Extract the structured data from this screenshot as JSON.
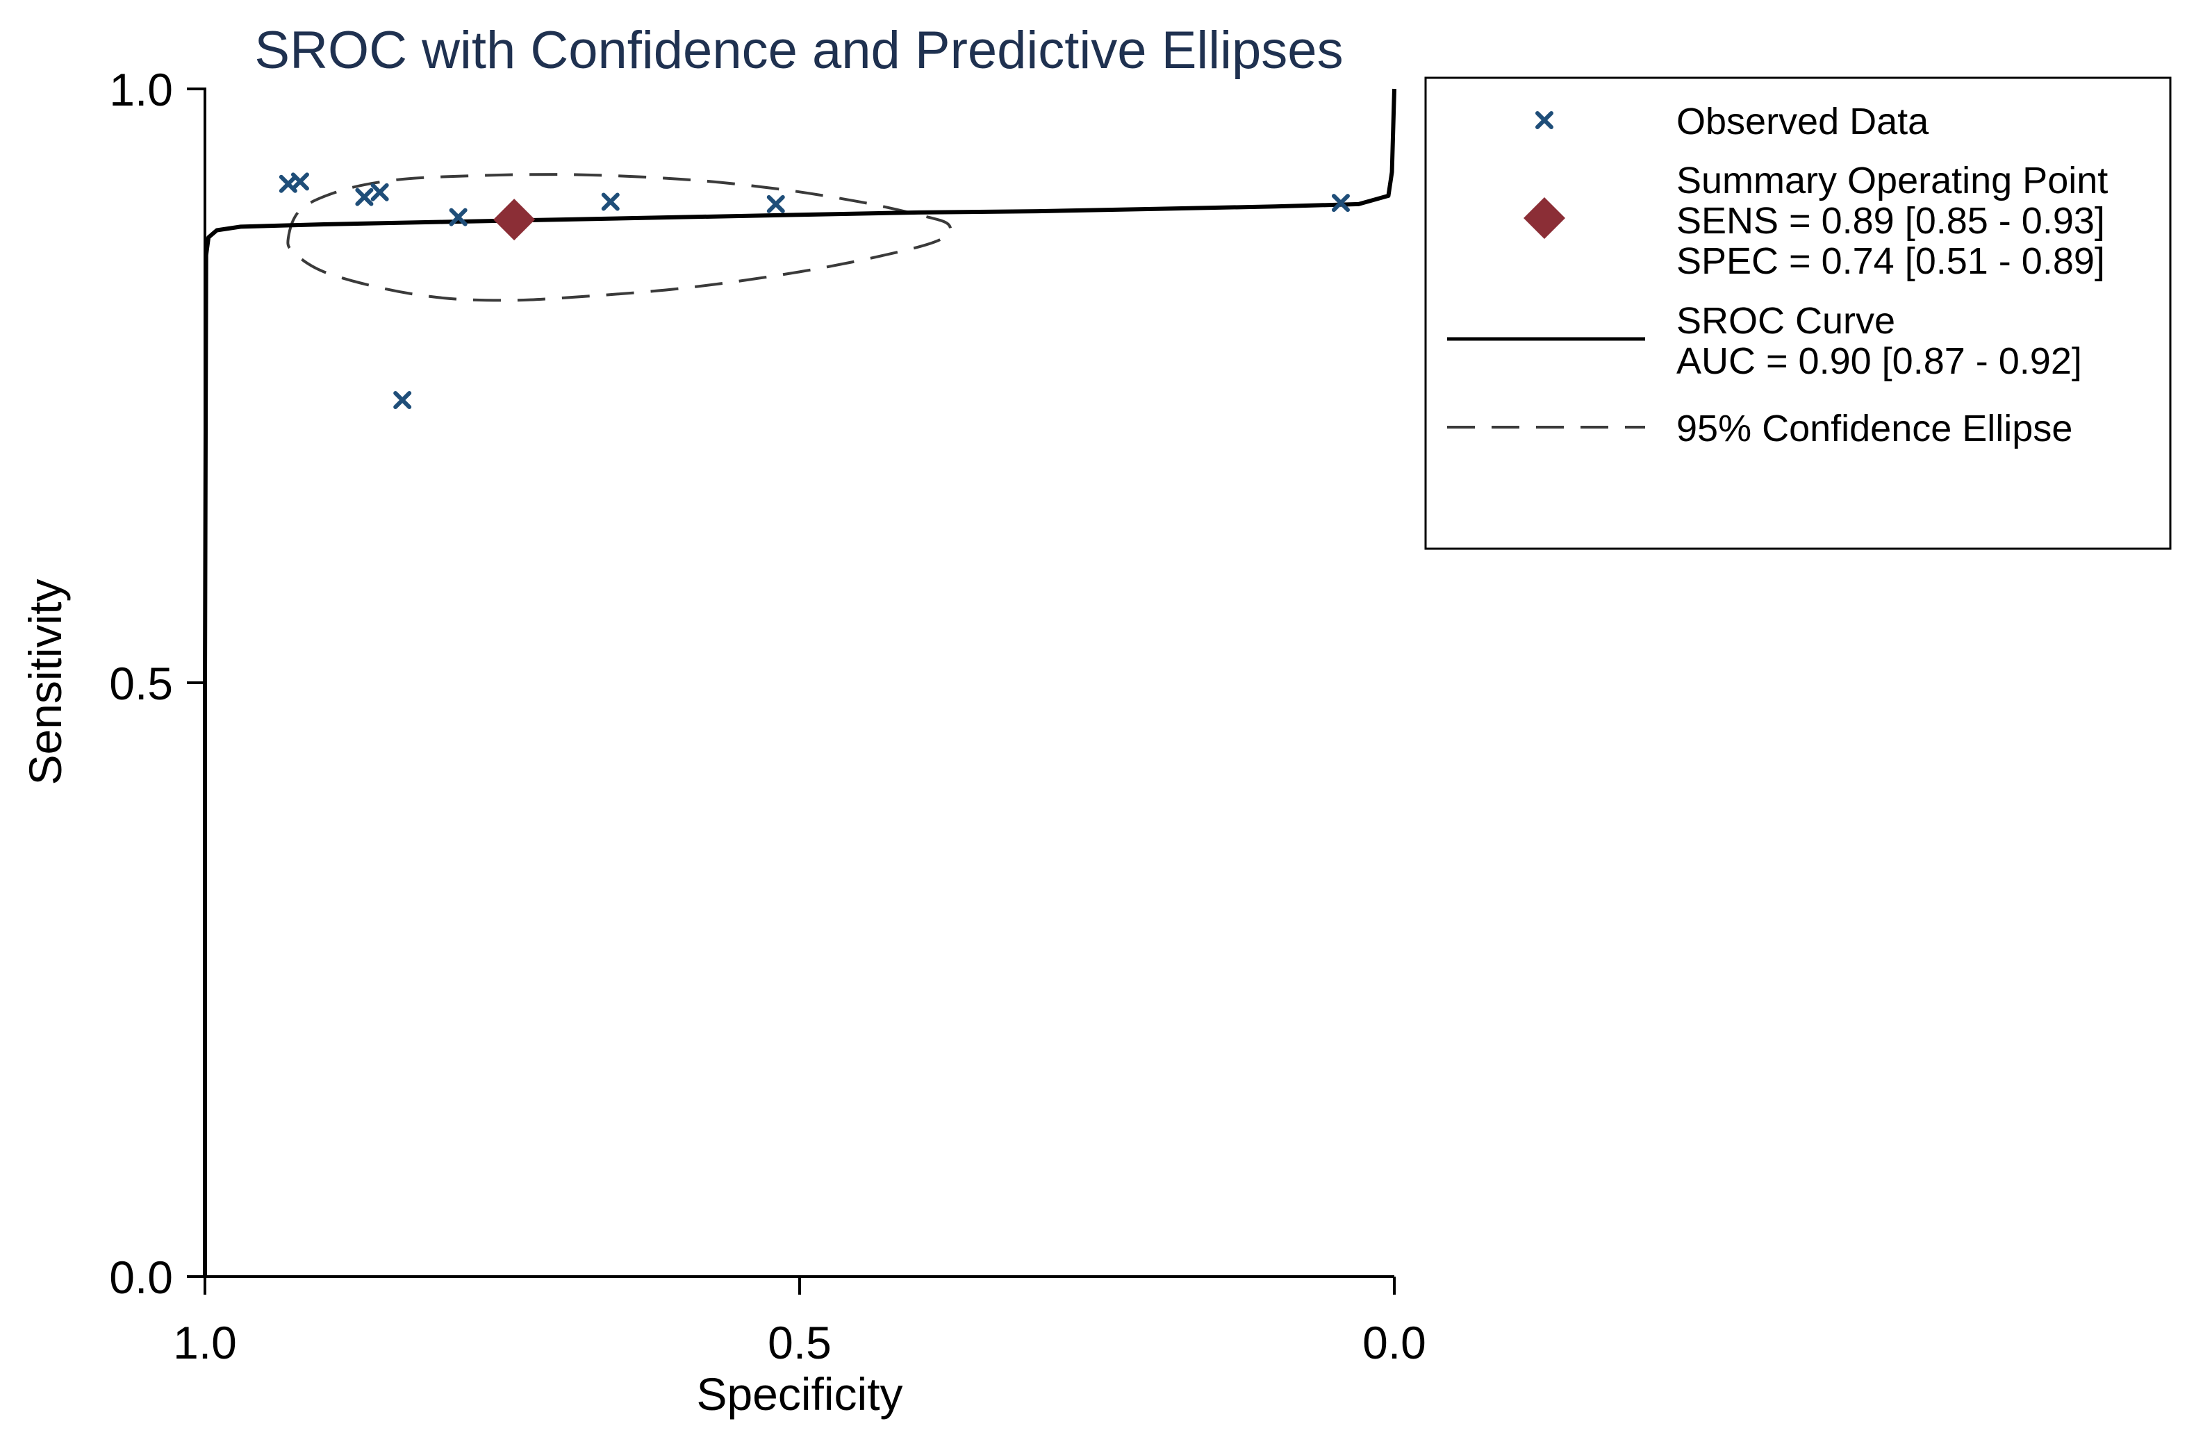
{
  "chart_data": {
    "type": "scatter",
    "title": "SROC with Confidence and Predictive Ellipses",
    "xlabel": "Specificity",
    "ylabel": "Sensitivity",
    "xlim": [
      1.0,
      0.0
    ],
    "ylim": [
      0.0,
      1.0
    ],
    "x_reversed": true,
    "xticks": [
      {
        "value": 1.0,
        "label": "1.0"
      },
      {
        "value": 0.5,
        "label": "0.5"
      },
      {
        "value": 0.0,
        "label": "0.0"
      }
    ],
    "yticks": [
      {
        "value": 0.0,
        "label": "0.0"
      },
      {
        "value": 0.5,
        "label": "0.5"
      },
      {
        "value": 1.0,
        "label": "1.0"
      }
    ],
    "grid": false,
    "legend_position": "right",
    "observed_data": {
      "name": "Observed Data",
      "color": "#1f4e79",
      "points": [
        {
          "spec": 0.93,
          "sens": 0.92
        },
        {
          "spec": 0.92,
          "sens": 0.922
        },
        {
          "spec": 0.866,
          "sens": 0.909
        },
        {
          "spec": 0.853,
          "sens": 0.913
        },
        {
          "spec": 0.834,
          "sens": 0.738
        },
        {
          "spec": 0.787,
          "sens": 0.892
        },
        {
          "spec": 0.659,
          "sens": 0.905
        },
        {
          "spec": 0.52,
          "sens": 0.903
        },
        {
          "spec": 0.045,
          "sens": 0.904
        }
      ]
    },
    "summary_point": {
      "name": "Summary Operating Point",
      "color": "#8b2e36",
      "spec": 0.74,
      "sens": 0.89,
      "sens_text": "SENS = 0.89 [0.85 - 0.93]",
      "spec_text": "SPEC = 0.74 [0.51 - 0.89]"
    },
    "sroc_curve": {
      "name": "SROC Curve",
      "auc_text": "AUC = 0.90 [0.87 - 0.92]",
      "color": "#000000",
      "points": [
        [
          1.0,
          0.0
        ],
        [
          1.0,
          0.5
        ],
        [
          0.999,
          0.86
        ],
        [
          0.997,
          0.875
        ],
        [
          0.99,
          0.881
        ],
        [
          0.97,
          0.884
        ],
        [
          0.9,
          0.886
        ],
        [
          0.8,
          0.888
        ],
        [
          0.7,
          0.89
        ],
        [
          0.6,
          0.892
        ],
        [
          0.5,
          0.894
        ],
        [
          0.4,
          0.896
        ],
        [
          0.3,
          0.897
        ],
        [
          0.2,
          0.899
        ],
        [
          0.1,
          0.901
        ],
        [
          0.03,
          0.903
        ],
        [
          0.005,
          0.91
        ],
        [
          0.002,
          0.93
        ],
        [
          0.0,
          1.0
        ]
      ]
    },
    "confidence_ellipse": {
      "name": "95% Confidence Ellipse",
      "color": "#3a3a3a",
      "points": [
        [
          0.93,
          0.874
        ],
        [
          0.92,
          0.898
        ],
        [
          0.89,
          0.913
        ],
        [
          0.85,
          0.922
        ],
        [
          0.8,
          0.926
        ],
        [
          0.7,
          0.928
        ],
        [
          0.6,
          0.924
        ],
        [
          0.52,
          0.916
        ],
        [
          0.45,
          0.905
        ],
        [
          0.4,
          0.894
        ],
        [
          0.375,
          0.886
        ],
        [
          0.38,
          0.874
        ],
        [
          0.42,
          0.862
        ],
        [
          0.5,
          0.846
        ],
        [
          0.6,
          0.832
        ],
        [
          0.7,
          0.824
        ],
        [
          0.75,
          0.822
        ],
        [
          0.8,
          0.824
        ],
        [
          0.85,
          0.832
        ],
        [
          0.9,
          0.846
        ],
        [
          0.925,
          0.862
        ],
        [
          0.93,
          0.874
        ]
      ]
    }
  },
  "legend": {
    "observed": "Observed Data",
    "summary": "Summary Operating Point",
    "sens": "SENS = 0.89 [0.85 - 0.93]",
    "spec": "SPEC = 0.74 [0.51 - 0.89]",
    "sroc": "SROC Curve",
    "auc": "AUC = 0.90 [0.87 - 0.92]",
    "ellipse": "95% Confidence Ellipse"
  }
}
